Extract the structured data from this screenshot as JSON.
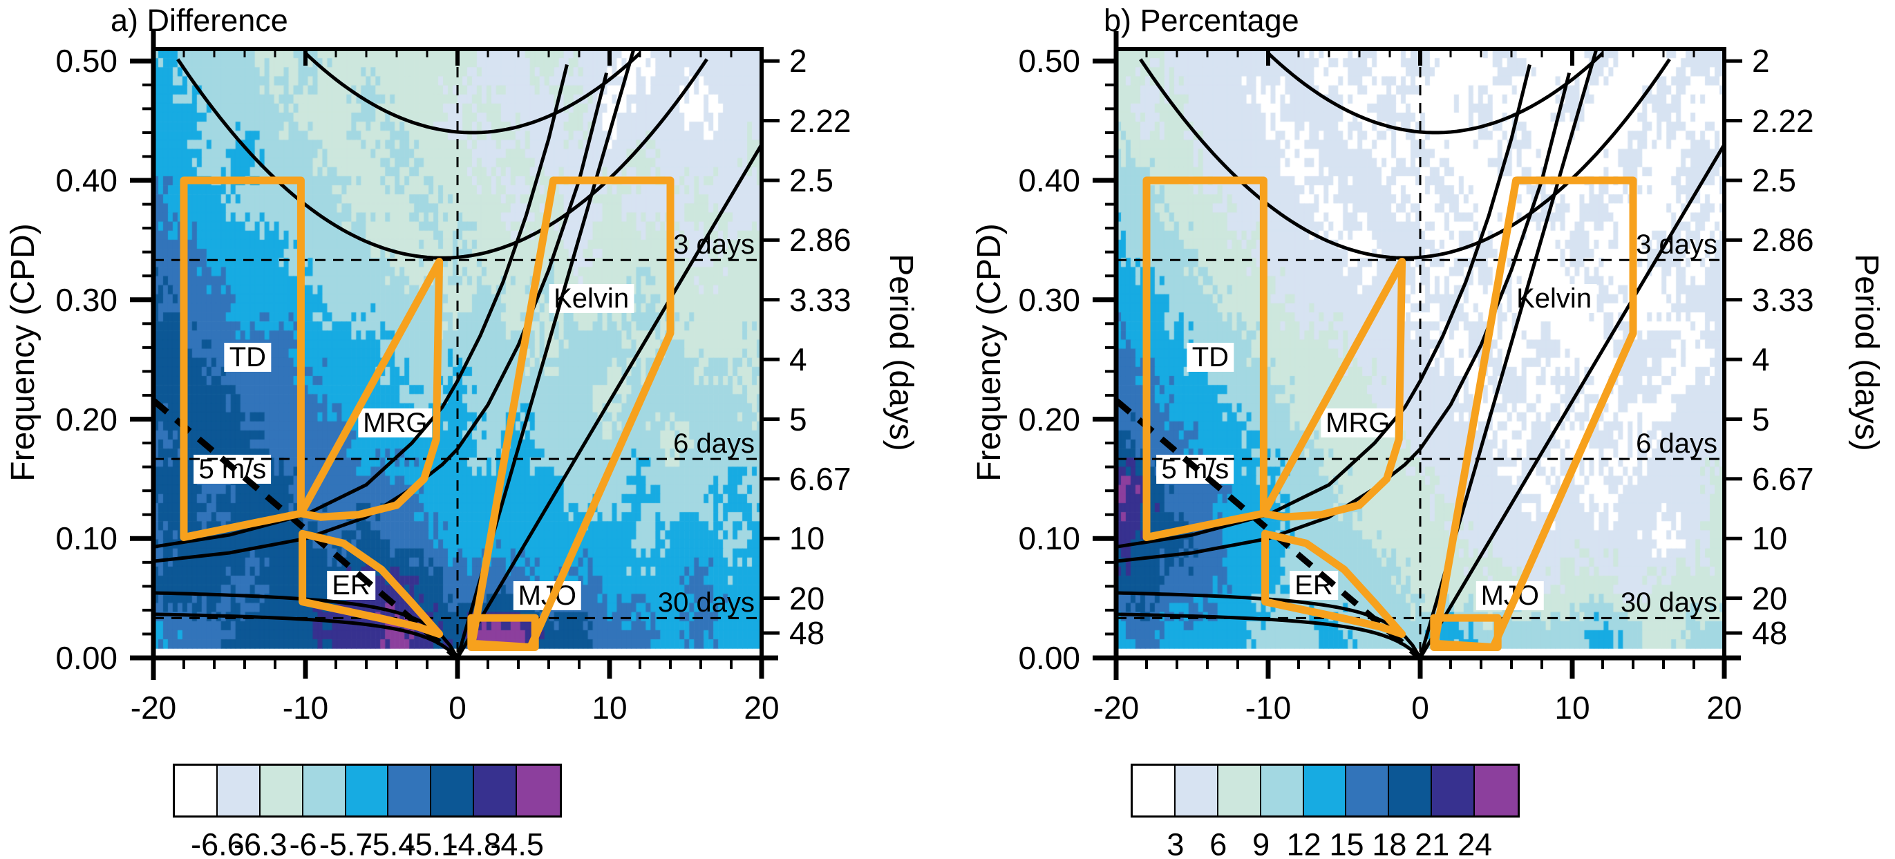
{
  "figure": {
    "panels": [
      {
        "id": "a",
        "title": "a) Difference",
        "y_axis_label": "Frequency (CPD)",
        "right_axis_label": "Period (days)"
      },
      {
        "id": "b",
        "title": "b) Percentage",
        "y_axis_label": "Frequency (CPD)",
        "right_axis_label": "Period (days)"
      }
    ]
  },
  "chart_data": {
    "type": "heatmap",
    "description": "Wavenumber-frequency spectra of tropical waves; filled contours with equatorial wave dispersion curves and wave-filter boxes",
    "x_axis": {
      "range": [
        -20,
        20
      ],
      "tick_labels": [
        "-20",
        "-10",
        "0",
        "10",
        "20"
      ],
      "tick_values": [
        -20,
        -10,
        0,
        10,
        20
      ],
      "minor_step": 2
    },
    "y_axis": {
      "label": "Frequency (CPD)",
      "range": [
        0,
        0.51
      ],
      "tick_labels": [
        "0.00",
        "0.10",
        "0.20",
        "0.30",
        "0.40",
        "0.50"
      ],
      "tick_values": [
        0,
        0.1,
        0.2,
        0.3,
        0.4,
        0.5
      ],
      "minor_step": 0.02
    },
    "right_axis": {
      "label": "Period (days)",
      "ticks": [
        {
          "label": "2",
          "f": 0.5
        },
        {
          "label": "2.22",
          "f": 0.45
        },
        {
          "label": "2.5",
          "f": 0.4
        },
        {
          "label": "2.86",
          "f": 0.35
        },
        {
          "label": "3.33",
          "f": 0.3
        },
        {
          "label": "4",
          "f": 0.25
        },
        {
          "label": "5",
          "f": 0.2
        },
        {
          "label": "6.67",
          "f": 0.15
        },
        {
          "label": "10",
          "f": 0.1
        },
        {
          "label": "20",
          "f": 0.05
        },
        {
          "label": "48",
          "f": 0.020833
        }
      ]
    },
    "colors": {
      "fill_scale": [
        "#ffffff",
        "#d7e3f2",
        "#cde7dd",
        "#a3d8e2",
        "#17abe2",
        "#3274ba",
        "#0c5795",
        "#37318f",
        "#8c3f9d"
      ],
      "wave_box": "#F7A11D",
      "curve": "#000000"
    },
    "grid": {
      "k": [
        -20,
        -18,
        -16,
        -14,
        -12,
        -10,
        -8,
        -6,
        -4,
        -2,
        0,
        2,
        4,
        6,
        8,
        10,
        12,
        14,
        16,
        18,
        20
      ],
      "f": [
        0.5,
        0.46,
        0.42,
        0.38,
        0.34,
        0.3,
        0.26,
        0.22,
        0.18,
        0.14,
        0.1,
        0.06,
        0.02
      ]
    },
    "panels": [
      {
        "name": "Difference",
        "levels": [
          -6.6,
          -6.3,
          -6,
          -5.7,
          -5.4,
          -5.1,
          -4.8,
          -4.5
        ],
        "level_labels": [
          "-6.6",
          "-6.3",
          "-6",
          "-5.7",
          "-5.4",
          "-5.1",
          "-4.8",
          "-4.5"
        ],
        "field_note": "integer color-bin index 0..8; bin i means value between levels[i-1] and levels[i]",
        "field": [
          [
            4,
            3,
            3,
            3,
            2,
            3,
            2,
            2,
            2,
            2,
            2,
            1,
            1,
            2,
            1,
            1,
            0,
            1,
            1,
            1,
            1
          ],
          [
            4,
            4,
            3,
            3,
            3,
            2,
            2,
            3,
            2,
            2,
            1,
            2,
            1,
            1,
            2,
            0,
            1,
            1,
            0,
            1,
            1
          ],
          [
            4,
            4,
            3,
            4,
            3,
            3,
            2,
            2,
            3,
            2,
            2,
            1,
            2,
            1,
            1,
            1,
            2,
            1,
            1,
            1,
            2
          ],
          [
            5,
            4,
            4,
            3,
            3,
            3,
            3,
            2,
            2,
            3,
            2,
            2,
            1,
            2,
            1,
            2,
            1,
            1,
            2,
            1,
            1
          ],
          [
            5,
            5,
            4,
            4,
            4,
            3,
            3,
            3,
            2,
            2,
            3,
            2,
            2,
            2,
            1,
            2,
            2,
            2,
            1,
            2,
            2
          ],
          [
            6,
            5,
            5,
            4,
            4,
            4,
            3,
            3,
            3,
            3,
            2,
            3,
            2,
            3,
            2,
            2,
            3,
            2,
            2,
            2,
            2
          ],
          [
            6,
            6,
            5,
            5,
            5,
            4,
            4,
            4,
            3,
            3,
            3,
            3,
            3,
            2,
            3,
            3,
            2,
            3,
            2,
            2,
            3
          ],
          [
            6,
            6,
            6,
            5,
            5,
            5,
            4,
            4,
            4,
            3,
            4,
            3,
            3,
            3,
            3,
            2,
            3,
            3,
            3,
            3,
            2
          ],
          [
            5,
            6,
            6,
            6,
            5,
            5,
            5,
            4,
            4,
            4,
            4,
            3,
            4,
            3,
            3,
            3,
            3,
            2,
            3,
            3,
            3
          ],
          [
            6,
            6,
            5,
            6,
            6,
            5,
            5,
            5,
            5,
            4,
            4,
            4,
            4,
            4,
            3,
            3,
            4,
            3,
            3,
            4,
            3
          ],
          [
            5,
            6,
            6,
            6,
            6,
            6,
            5,
            6,
            5,
            5,
            4,
            4,
            4,
            4,
            4,
            4,
            3,
            4,
            4,
            3,
            4
          ],
          [
            6,
            6,
            6,
            5,
            6,
            6,
            6,
            7,
            7,
            6,
            5,
            5,
            5,
            4,
            5,
            4,
            4,
            4,
            5,
            4,
            4
          ],
          [
            4,
            5,
            5,
            6,
            6,
            6,
            7,
            7,
            8,
            7,
            6,
            8,
            8,
            6,
            6,
            5,
            5,
            4,
            5,
            4,
            4
          ]
        ]
      },
      {
        "name": "Percentage",
        "levels": [
          3,
          6,
          9,
          12,
          15,
          18,
          21,
          24
        ],
        "level_labels": [
          "3",
          "6",
          "9",
          "12",
          "15",
          "18",
          "21",
          "24"
        ],
        "field_note": "integer color-bin index 0..8; bin i means value between levels[i-1] and levels[i]",
        "field": [
          [
            2,
            2,
            1,
            1,
            1,
            1,
            1,
            0,
            1,
            0,
            1,
            0,
            0,
            1,
            0,
            0,
            1,
            0,
            0,
            1,
            1
          ],
          [
            2,
            1,
            2,
            1,
            1,
            0,
            1,
            1,
            0,
            1,
            0,
            0,
            1,
            0,
            0,
            1,
            0,
            0,
            1,
            0,
            0
          ],
          [
            3,
            2,
            2,
            1,
            1,
            1,
            0,
            1,
            1,
            0,
            1,
            0,
            0,
            1,
            0,
            0,
            0,
            1,
            0,
            1,
            1
          ],
          [
            3,
            3,
            2,
            2,
            1,
            1,
            1,
            0,
            1,
            1,
            0,
            1,
            0,
            0,
            1,
            0,
            1,
            0,
            0,
            1,
            0
          ],
          [
            4,
            3,
            3,
            2,
            2,
            1,
            1,
            1,
            0,
            1,
            1,
            0,
            1,
            0,
            0,
            1,
            0,
            0,
            1,
            0,
            1
          ],
          [
            4,
            4,
            3,
            3,
            2,
            2,
            1,
            1,
            1,
            1,
            0,
            1,
            0,
            1,
            0,
            0,
            1,
            0,
            0,
            1,
            1
          ],
          [
            5,
            4,
            4,
            3,
            3,
            2,
            2,
            2,
            1,
            1,
            1,
            0,
            1,
            0,
            1,
            0,
            0,
            1,
            1,
            0,
            1
          ],
          [
            5,
            5,
            4,
            4,
            3,
            3,
            2,
            2,
            2,
            1,
            1,
            1,
            0,
            1,
            0,
            1,
            0,
            1,
            0,
            1,
            1
          ],
          [
            6,
            5,
            5,
            4,
            4,
            3,
            3,
            2,
            2,
            2,
            1,
            1,
            1,
            0,
            1,
            0,
            1,
            0,
            1,
            1,
            1
          ],
          [
            8,
            7,
            5,
            5,
            4,
            4,
            3,
            3,
            2,
            2,
            2,
            1,
            1,
            1,
            0,
            1,
            0,
            1,
            1,
            1,
            2
          ],
          [
            7,
            6,
            6,
            5,
            4,
            4,
            3,
            3,
            3,
            2,
            2,
            2,
            1,
            1,
            1,
            1,
            1,
            1,
            0,
            1,
            2
          ],
          [
            6,
            6,
            5,
            5,
            4,
            4,
            3,
            3,
            3,
            3,
            2,
            2,
            2,
            2,
            1,
            2,
            2,
            1,
            2,
            2,
            2
          ],
          [
            4,
            5,
            4,
            4,
            4,
            3,
            3,
            4,
            3,
            3,
            3,
            4,
            3,
            3,
            3,
            3,
            4,
            3,
            2,
            3,
            3
          ]
        ]
      }
    ],
    "wave_filters": [
      {
        "name": "TD",
        "polygon": [
          [
            -18,
            0.4
          ],
          [
            -10.3,
            0.4
          ],
          [
            -10.3,
            0.121
          ],
          [
            -18,
            0.101
          ]
        ],
        "label_at": [
          -13.8,
          0.252
        ]
      },
      {
        "name": "MRG",
        "polygon": [
          [
            -10.3,
            0.121
          ],
          [
            -1.2,
            0.332
          ],
          [
            -1.4,
            0.183
          ],
          [
            -2.2,
            0.15
          ],
          [
            -4.0,
            0.128
          ],
          [
            -6.5,
            0.12
          ],
          [
            -9.0,
            0.118
          ]
        ],
        "label_at": [
          -4.1,
          0.197
        ]
      },
      {
        "name": "ER",
        "polygon": [
          [
            -10.2,
            0.104
          ],
          [
            -7.5,
            0.096
          ],
          [
            -5.0,
            0.074
          ],
          [
            -3.0,
            0.046
          ],
          [
            -1.2,
            0.02
          ],
          [
            -2.6,
            0.026
          ],
          [
            -5.0,
            0.033
          ],
          [
            -7.6,
            0.04
          ],
          [
            -10.2,
            0.047
          ]
        ],
        "label_at": [
          -7.0,
          0.061
        ]
      },
      {
        "name": "MJO",
        "polygon": [
          [
            0.9,
            0.0335
          ],
          [
            5.1,
            0.0335
          ],
          [
            5.1,
            0.009
          ],
          [
            0.9,
            0.009
          ]
        ],
        "label_at": [
          5.9,
          0.052
        ]
      },
      {
        "name": "Kelvin",
        "polygon": [
          [
            6.3,
            0.4
          ],
          [
            14,
            0.4
          ],
          [
            14,
            0.272
          ],
          [
            4.8,
            0.009
          ],
          [
            0.95,
            0.012
          ]
        ],
        "label_at": [
          8.8,
          0.301
        ]
      }
    ],
    "speed_line": {
      "label": "5 m/s",
      "from": [
        -20,
        0.2156
      ],
      "to": [
        0,
        0
      ],
      "label_at": [
        -14.8,
        0.158
      ]
    },
    "period_lines": [
      {
        "label": "3 days",
        "f": 0.33333
      },
      {
        "label": "6 days",
        "f": 0.16667
      },
      {
        "label": "30 days",
        "f": 0.03333
      }
    ],
    "dispersion_curves": [
      {
        "id": "inertio-gravity-1",
        "type": "parabola",
        "k0": -1,
        "f0": 0.335,
        "a": 0.00055
      },
      {
        "id": "inertio-gravity-2",
        "type": "parabola",
        "k0": 1,
        "f0": 0.44,
        "a": 0.00055
      },
      {
        "id": "kelvin-fast",
        "type": "line",
        "slope": 0.044,
        "k_min": 0,
        "k_max": 20
      },
      {
        "id": "kelvin-slow",
        "type": "line",
        "slope": 0.0215,
        "k_min": 0,
        "k_max": 20
      },
      {
        "id": "mrg-eig-1",
        "type": "points",
        "pts": [
          [
            -20,
            0.093
          ],
          [
            -15,
            0.103
          ],
          [
            -10,
            0.12
          ],
          [
            -6,
            0.145
          ],
          [
            -3,
            0.18
          ],
          [
            -1,
            0.21
          ],
          [
            0,
            0.232
          ],
          [
            1.5,
            0.27
          ],
          [
            3,
            0.315
          ],
          [
            4.5,
            0.37
          ],
          [
            6,
            0.435
          ],
          [
            7.2,
            0.497
          ]
        ]
      },
      {
        "id": "mrg-eig-2",
        "type": "points",
        "pts": [
          [
            -20,
            0.081
          ],
          [
            -15,
            0.088
          ],
          [
            -10,
            0.1
          ],
          [
            -6,
            0.118
          ],
          [
            -3,
            0.142
          ],
          [
            -1,
            0.162
          ],
          [
            0,
            0.175
          ],
          [
            2,
            0.212
          ],
          [
            4,
            0.262
          ],
          [
            6,
            0.325
          ],
          [
            8,
            0.4
          ],
          [
            9.8,
            0.49
          ]
        ]
      },
      {
        "id": "er-1",
        "type": "saturating",
        "A": 0.061,
        "C": 2.4
      },
      {
        "id": "er-2",
        "type": "saturating",
        "A": 0.042,
        "C": 3.0
      }
    ]
  }
}
